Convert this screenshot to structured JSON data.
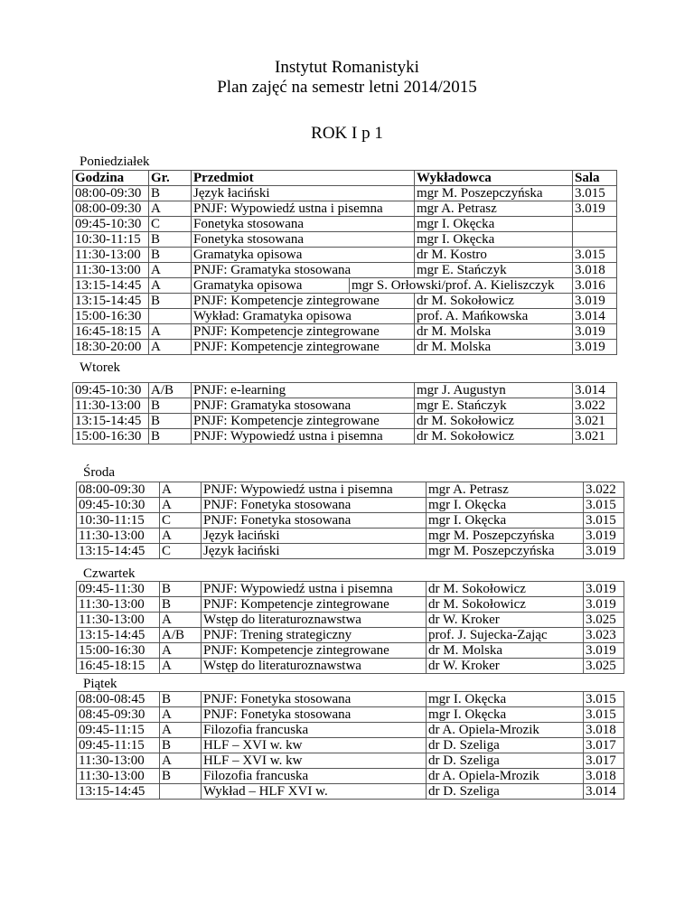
{
  "header": {
    "line1": "Instytut Romanistyki",
    "line2": "Plan zajęć na semestr letni 2014/2015",
    "line3": "ROK I p 1"
  },
  "columns": [
    "Godzina",
    "Gr.",
    "Przedmiot",
    "Wykładowca",
    "Sala"
  ],
  "days": [
    {
      "name": "Poniedziałek",
      "rows": [
        [
          "08:00-09:30",
          "B",
          "Język łaciński",
          "mgr M. Poszepczyńska",
          "3.015"
        ],
        [
          "08:00-09:30",
          "A",
          "PNJF: Wypowiedź ustna i pisemna",
          "mgr A. Petrasz",
          "3.019"
        ],
        [
          "09:45-10:30",
          "C",
          "Fonetyka stosowana",
          "mgr I. Okęcka",
          ""
        ],
        [
          "10:30-11:15",
          "B",
          "Fonetyka stosowana",
          "mgr I. Okęcka",
          ""
        ],
        [
          "11:30-13:00",
          "B",
          "Gramatyka opisowa",
          "dr M. Kostro",
          "3.015"
        ],
        [
          "11:30-13:00",
          "A",
          "PNJF: Gramatyka stosowana",
          "mgr E. Stańczyk",
          "3.018"
        ],
        [
          "13:15-14:45",
          "A",
          "Gramatyka opisowa",
          "mgr S. Orłowski/prof. A. Kieliszczyk",
          "3.016"
        ],
        [
          "13:15-14:45",
          "B",
          "PNJF: Kompetencje zintegrowane",
          "dr M. Sokołowicz",
          "3.019"
        ],
        [
          "15:00-16:30",
          "",
          "Wykład: Gramatyka opisowa",
          "prof. A. Mańkowska",
          "3.014"
        ],
        [
          "16:45-18:15",
          "A",
          "PNJF: Kompetencje zintegrowane",
          "dr M. Molska",
          "3.019"
        ],
        [
          "18:30-20:00",
          "A",
          "PNJF: Kompetencje zintegrowane",
          "dr M. Molska",
          "3.019"
        ]
      ]
    },
    {
      "name": "Wtorek",
      "rows": [
        [
          "09:45-10:30",
          "A/B",
          "PNJF: e-learning",
          "mgr J. Augustyn",
          "3.014"
        ],
        [
          "11:30-13:00",
          "B",
          "PNJF: Gramatyka stosowana",
          "mgr E. Stańczyk",
          "3.022"
        ],
        [
          "13:15-14:45",
          "B",
          "PNJF: Kompetencje zintegrowane",
          "dr M. Sokołowicz",
          "3.021"
        ],
        [
          "15:00-16:30",
          "B",
          "PNJF: Wypowiedź ustna i pisemna",
          "dr M. Sokołowicz",
          "3.021"
        ]
      ]
    },
    {
      "name": "Środa",
      "rows": [
        [
          "08:00-09:30",
          "A",
          "PNJF: Wypowiedź ustna i pisemna",
          "mgr A. Petrasz",
          "3.022"
        ],
        [
          "09:45-10:30",
          "A",
          "PNJF: Fonetyka stosowana",
          "mgr I. Okęcka",
          "3.015"
        ],
        [
          "10:30-11:15",
          "C",
          "PNJF: Fonetyka stosowana",
          "mgr I. Okęcka",
          "3.015"
        ],
        [
          "11:30-13:00",
          "A",
          "Język łaciński",
          "mgr M. Poszepczyńska",
          "3.019"
        ],
        [
          "13:15-14:45",
          "C",
          "Język łaciński",
          "mgr M. Poszepczyńska",
          "3.019"
        ]
      ]
    },
    {
      "name": "Czwartek",
      "rows": [
        [
          "09:45-11:30",
          "B",
          "PNJF: Wypowiedź ustna i pisemna",
          "dr M. Sokołowicz",
          "3.019"
        ],
        [
          "11:30-13:00",
          "B",
          "PNJF: Kompetencje zintegrowane",
          "dr M. Sokołowicz",
          "3.019"
        ],
        [
          "11:30-13:00",
          "A",
          "Wstęp do literaturoznawstwa",
          "dr W. Kroker",
          "3.025"
        ],
        [
          "13:15-14:45",
          "A/B",
          "PNJF: Trening strategiczny",
          "prof. J. Sujecka-Zając",
          "3.023"
        ],
        [
          "15:00-16:30",
          "A",
          "PNJF: Kompetencje zintegrowane",
          "dr M. Molska",
          "3.019"
        ],
        [
          "16:45-18:15",
          "A",
          "Wstęp do literaturoznawstwa",
          "dr W. Kroker",
          "3.025"
        ]
      ]
    },
    {
      "name": "Piątek",
      "rows": [
        [
          "08:00-08:45",
          "B",
          "PNJF: Fonetyka stosowana",
          "mgr I. Okęcka",
          "3.015"
        ],
        [
          "08:45-09:30",
          "A",
          "PNJF: Fonetyka stosowana",
          "mgr I. Okęcka",
          "3.015"
        ],
        [
          "09:45-11:15",
          "A",
          "Filozofia francuska",
          "dr A. Opiela-Mrozik",
          "3.018"
        ],
        [
          "09:45-11:15",
          "B",
          "HLF – XVI w. kw",
          "dr D. Szeliga",
          "3.017"
        ],
        [
          "11:30-13:00",
          "A",
          "HLF – XVI w. kw",
          "dr D. Szeliga",
          "3.017"
        ],
        [
          "11:30-13:00",
          "B",
          "Filozofia francuska",
          "dr A. Opiela-Mrozik",
          "3.018"
        ],
        [
          "13:15-14:45",
          "",
          "Wykład – HLF XVI w.",
          "dr D. Szeliga",
          "3.014"
        ]
      ]
    }
  ]
}
